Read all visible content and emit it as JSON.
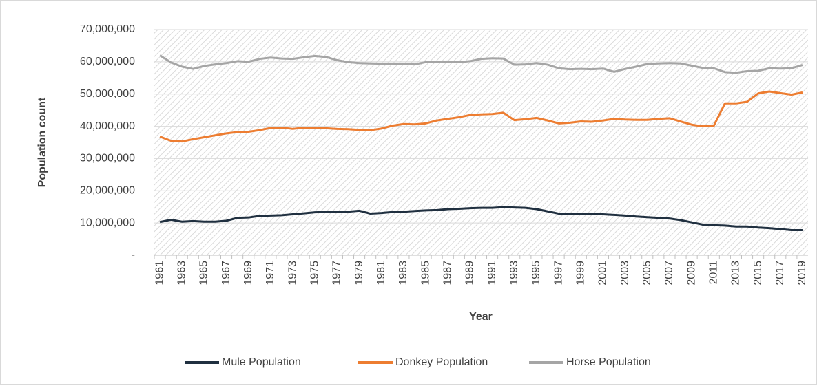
{
  "chart_data": {
    "type": "line",
    "x_label": "Year",
    "y_label": "Population count",
    "categories": [
      "1961",
      null,
      "1963",
      null,
      "1965",
      null,
      "1967",
      null,
      "1969",
      null,
      "1971",
      null,
      "1973",
      null,
      "1975",
      null,
      "1977",
      null,
      "1979",
      null,
      "1981",
      null,
      "1983",
      null,
      "1985",
      null,
      "1987",
      null,
      "1989",
      null,
      "1991",
      null,
      "1993",
      null,
      "1995",
      null,
      "1997",
      null,
      "1999",
      null,
      "2001",
      null,
      "2003",
      null,
      "2005",
      null,
      "2007",
      null,
      "2009",
      null,
      "2011",
      null,
      "2013",
      null,
      "2015",
      null,
      "2017",
      null,
      "2019"
    ],
    "series": [
      {
        "name": "Mule Population",
        "color": "#203040",
        "values": [
          10300000,
          11000000,
          10400000,
          10600000,
          10400000,
          10400000,
          10700000,
          11600000,
          11700000,
          12200000,
          12300000,
          12400000,
          12700000,
          13000000,
          13300000,
          13400000,
          13500000,
          13500000,
          13800000,
          12900000,
          13100000,
          13400000,
          13500000,
          13700000,
          13900000,
          14000000,
          14300000,
          14400000,
          14600000,
          14700000,
          14700000,
          14900000,
          14800000,
          14700000,
          14300000,
          13600000,
          12900000,
          12900000,
          12900000,
          12800000,
          12700000,
          12500000,
          12300000,
          12000000,
          11800000,
          11600000,
          11400000,
          10900000,
          10200000,
          9500000,
          9300000,
          9200000,
          8900000,
          8900000,
          8600000,
          8400000,
          8100000,
          7800000,
          7800000
        ]
      },
      {
        "name": "Donkey Population",
        "color": "#ed7d31",
        "values": [
          36800000,
          35500000,
          35300000,
          36000000,
          36600000,
          37200000,
          37800000,
          38200000,
          38300000,
          38800000,
          39500000,
          39600000,
          39200000,
          39600000,
          39600000,
          39400000,
          39200000,
          39100000,
          38900000,
          38800000,
          39300000,
          40200000,
          40700000,
          40600000,
          40900000,
          41800000,
          42300000,
          42800000,
          43500000,
          43700000,
          43800000,
          44200000,
          41900000,
          42200000,
          42600000,
          41800000,
          40900000,
          41100000,
          41500000,
          41400000,
          41800000,
          42300000,
          42100000,
          42000000,
          42000000,
          42300000,
          42500000,
          41500000,
          40500000,
          40000000,
          40200000,
          47100000,
          47100000,
          47600000,
          50200000,
          50800000,
          50300000,
          49800000,
          50500000
        ]
      },
      {
        "name": "Horse Population",
        "color": "#a5a5a5",
        "values": [
          62000000,
          59800000,
          58500000,
          57800000,
          58700000,
          59200000,
          59600000,
          60200000,
          60000000,
          60900000,
          61300000,
          61000000,
          60900000,
          61400000,
          61800000,
          61500000,
          60500000,
          59900000,
          59600000,
          59500000,
          59400000,
          59300000,
          59400000,
          59200000,
          59900000,
          60000000,
          60100000,
          59900000,
          60200000,
          60900000,
          61100000,
          61000000,
          59100000,
          59200000,
          59600000,
          59100000,
          58000000,
          57700000,
          57800000,
          57700000,
          57900000,
          56900000,
          57800000,
          58500000,
          59300000,
          59500000,
          59600000,
          59500000,
          58800000,
          58100000,
          58000000,
          56800000,
          56600000,
          57100000,
          57200000,
          58000000,
          57900000,
          58000000,
          59000000
        ]
      }
    ],
    "ylim": [
      0,
      70000000
    ],
    "yticks": [
      {
        "value": 0,
        "label": "-"
      },
      {
        "value": 10000000,
        "label": "10,000,000"
      },
      {
        "value": 20000000,
        "label": "20,000,000"
      },
      {
        "value": 30000000,
        "label": "30,000,000"
      },
      {
        "value": 40000000,
        "label": "40,000,000"
      },
      {
        "value": 50000000,
        "label": "50,000,000"
      },
      {
        "value": 60000000,
        "label": "60,000,000"
      },
      {
        "value": 70000000,
        "label": "70,000,000"
      }
    ],
    "grid": true,
    "legend": "bottom"
  }
}
